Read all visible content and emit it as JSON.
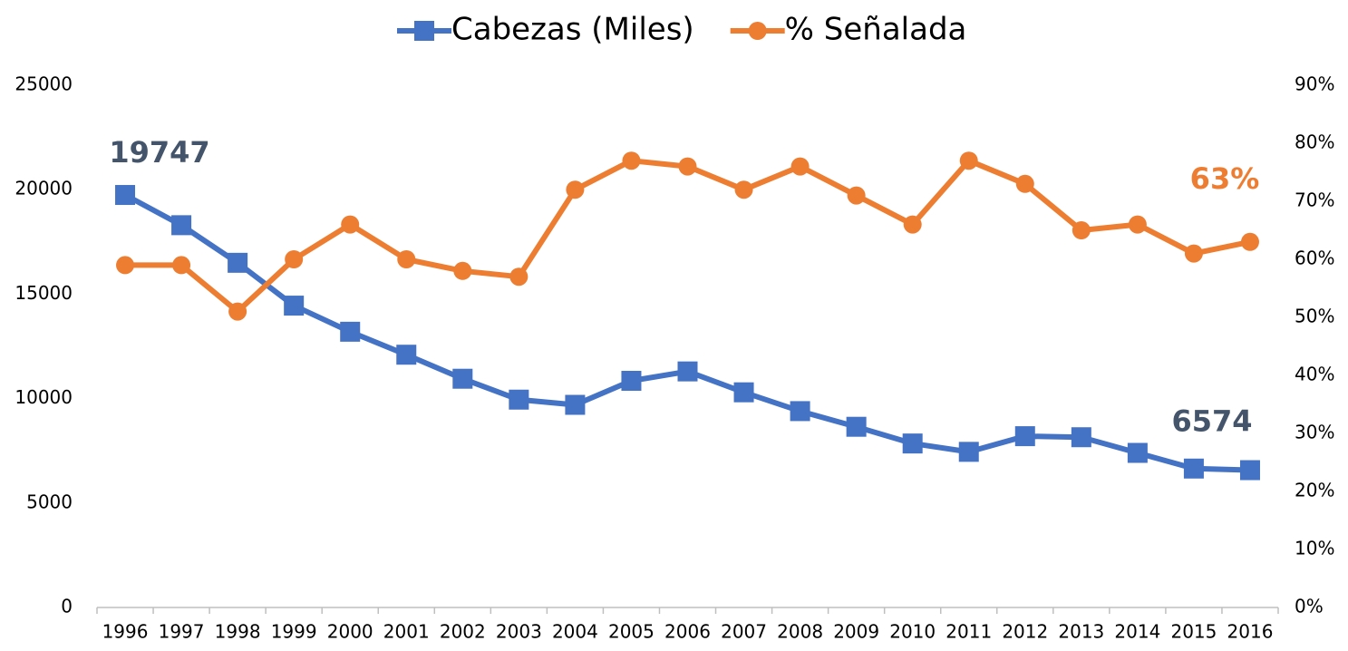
{
  "chart_data": {
    "type": "line",
    "categories": [
      "1996",
      "1997",
      "1998",
      "1999",
      "2000",
      "2001",
      "2002",
      "2003",
      "2004",
      "2005",
      "2006",
      "2007",
      "2008",
      "2009",
      "2010",
      "2011",
      "2012",
      "2013",
      "2014",
      "2015",
      "2016"
    ],
    "series": [
      {
        "name": "Cabezas (Miles)",
        "color": "#4472c4",
        "marker": "square",
        "values": [
          19747,
          18300,
          16500,
          14450,
          13200,
          12100,
          10950,
          9950,
          9700,
          10850,
          11300,
          10300,
          9400,
          8650,
          7850,
          7450,
          8200,
          8150,
          7400,
          6650,
          6574
        ],
        "value_labels": [
          "19747",
          null,
          null,
          null,
          null,
          null,
          null,
          null,
          null,
          null,
          null,
          null,
          null,
          null,
          null,
          null,
          null,
          null,
          null,
          null,
          "6574"
        ],
        "label_color": "#44546a"
      },
      {
        "name": "% Señalada",
        "color": "#ed7d31",
        "marker": "circle",
        "axis": "y2",
        "values": [
          59,
          59,
          51,
          60,
          66,
          60,
          58,
          57,
          72,
          77,
          76,
          72,
          76,
          71,
          66,
          77,
          73,
          65,
          66,
          61,
          63
        ],
        "value_labels": [
          null,
          null,
          null,
          null,
          null,
          null,
          null,
          null,
          null,
          null,
          null,
          null,
          null,
          null,
          null,
          null,
          null,
          null,
          null,
          null,
          "63%"
        ],
        "label_color": "#ed7d31"
      }
    ],
    "ylim": [
      0,
      25000
    ],
    "yticks": [
      0,
      5000,
      10000,
      15000,
      20000,
      25000
    ],
    "y2lim": [
      0,
      90
    ],
    "y2ticks": [
      {
        "value": 0,
        "label": "0%"
      },
      {
        "value": 10,
        "label": "10%"
      },
      {
        "value": 20,
        "label": "20%"
      },
      {
        "value": 30,
        "label": "30%"
      },
      {
        "value": 40,
        "label": "40%"
      },
      {
        "value": 50,
        "label": "50%"
      },
      {
        "value": 60,
        "label": "60%"
      },
      {
        "value": 70,
        "label": "70%"
      },
      {
        "value": 80,
        "label": "80%"
      },
      {
        "value": 90,
        "label": "90%"
      }
    ],
    "legend": "top",
    "grid": false
  }
}
